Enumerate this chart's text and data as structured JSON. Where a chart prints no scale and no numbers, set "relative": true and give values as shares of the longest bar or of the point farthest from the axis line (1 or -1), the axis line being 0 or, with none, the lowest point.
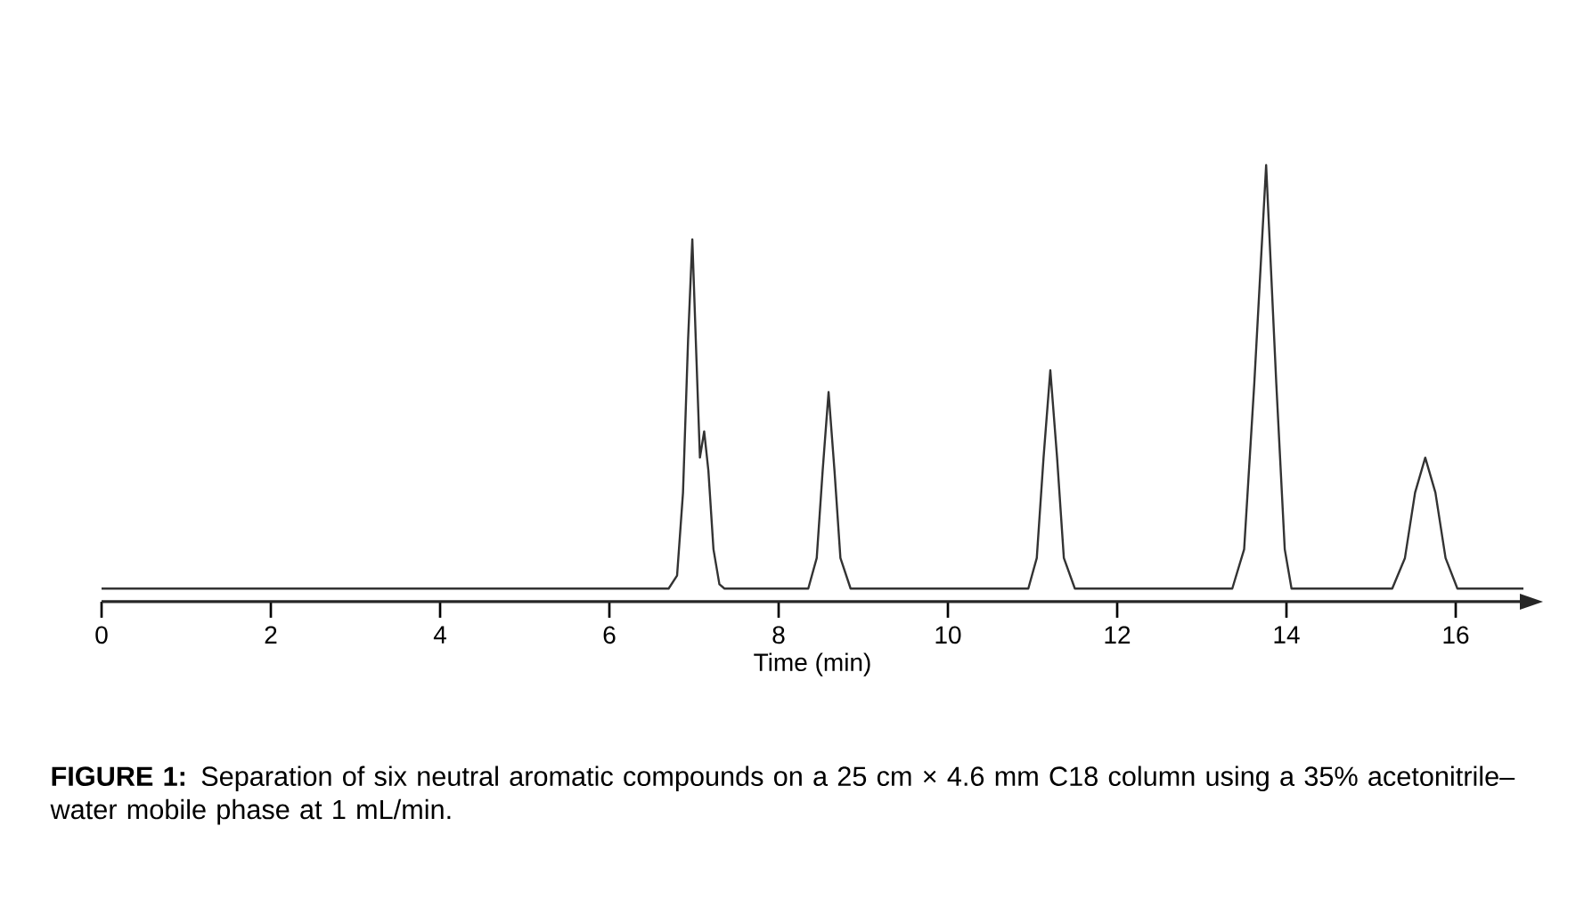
{
  "chart_data": {
    "type": "line",
    "relative": true,
    "xlabel": "Time (min)",
    "xlim": [
      0,
      16.8
    ],
    "xticks": [
      0,
      2,
      4,
      6,
      8,
      10,
      12,
      14,
      16
    ],
    "x": [
      0,
      6.7,
      6.8,
      6.87,
      6.93,
      6.98,
      7.03,
      7.07,
      7.12,
      7.17,
      7.23,
      7.3,
      7.36,
      8.35,
      8.45,
      8.52,
      8.59,
      8.66,
      8.73,
      8.85,
      10.95,
      11.05,
      11.13,
      11.21,
      11.29,
      11.37,
      11.5,
      13.36,
      13.5,
      13.62,
      13.76,
      13.88,
      13.98,
      14.06,
      15.25,
      15.4,
      15.52,
      15.64,
      15.76,
      15.88,
      16.02,
      16.8
    ],
    "series": [
      {
        "color": "#333333",
        "values": [
          0.03,
          0.03,
          0.06,
          0.25,
          0.6,
          0.83,
          0.55,
          0.33,
          0.39,
          0.3,
          0.12,
          0.04,
          0.03,
          0.03,
          0.1,
          0.3,
          0.48,
          0.3,
          0.1,
          0.03,
          0.03,
          0.1,
          0.33,
          0.53,
          0.33,
          0.1,
          0.03,
          0.03,
          0.12,
          0.5,
          1.0,
          0.5,
          0.12,
          0.03,
          0.03,
          0.1,
          0.25,
          0.33,
          0.25,
          0.1,
          0.03,
          0.03
        ]
      }
    ],
    "annotations": [
      "**FIGURE 1:** Separation of six neutral aromatic compounds on a 25 cm × 4.6 mm C18 column using a 35% acetonitrile–water mobile phase at 1 mL/min."
    ]
  }
}
